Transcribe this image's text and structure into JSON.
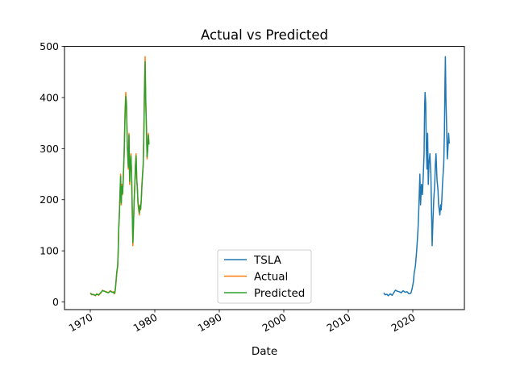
{
  "chart_data": {
    "type": "line",
    "title": "Actual vs Predicted",
    "xlabel": "Date",
    "ylabel": "",
    "x_axis": {
      "kind": "date",
      "ticks": [
        1970,
        1980,
        1990,
        2000,
        2010,
        2020
      ],
      "xlim": [
        1966.0,
        2028.0
      ]
    },
    "y_axis": {
      "ticks": [
        0,
        100,
        200,
        300,
        400,
        500
      ],
      "ylim": [
        -15,
        500
      ]
    },
    "grid": false,
    "legend": {
      "placement": "lower center",
      "entries": [
        "TSLA",
        "Actual",
        "Predicted"
      ]
    },
    "colors": {
      "TSLA": "#1f77b4",
      "Actual": "#ff7f0e",
      "Predicted": "#2ca02c"
    },
    "series": [
      {
        "name": "TSLA",
        "x": [
          2015.5,
          2015.7,
          2016.0,
          2016.2,
          2016.5,
          2016.8,
          2017.0,
          2017.3,
          2017.6,
          2017.9,
          2018.2,
          2018.5,
          2018.8,
          2019.1,
          2019.4,
          2019.7,
          2019.9,
          2020.1,
          2020.2,
          2020.4,
          2020.6,
          2020.8,
          2020.9,
          2021.0,
          2021.1,
          2021.2,
          2021.35,
          2021.5,
          2021.6,
          2021.75,
          2021.83,
          2021.9,
          2022.0,
          2022.1,
          2022.2,
          2022.3,
          2022.4,
          2022.5,
          2022.65,
          2022.8,
          2022.9,
          2023.0,
          2023.1,
          2023.25,
          2023.4,
          2023.5,
          2023.6,
          2023.75,
          2023.9,
          2024.0,
          2024.1,
          2024.2,
          2024.3,
          2024.4,
          2024.5,
          2024.6,
          2024.7,
          2024.8,
          2024.9,
          2024.98,
          2025.05,
          2025.15,
          2025.25,
          2025.35,
          2025.45,
          2025.55,
          2025.65
        ],
        "y": [
          18,
          14,
          15,
          12,
          16,
          13,
          17,
          23,
          21,
          20,
          18,
          22,
          19,
          20,
          16,
          17,
          26,
          40,
          55,
          70,
          100,
          140,
          170,
          210,
          250,
          190,
          230,
          210,
          240,
          290,
          380,
          410,
          390,
          300,
          260,
          330,
          230,
          270,
          290,
          250,
          180,
          110,
          150,
          200,
          230,
          270,
          290,
          240,
          220,
          190,
          180,
          170,
          190,
          180,
          200,
          230,
          250,
          270,
          330,
          420,
          480,
          390,
          340,
          280,
          300,
          330,
          310
        ]
      },
      {
        "name": "Actual",
        "x": [
          1970.0,
          1970.2,
          1970.5,
          1970.8,
          1971.0,
          1971.3,
          1971.6,
          1971.9,
          1972.2,
          1972.5,
          1972.8,
          1973.1,
          1973.4,
          1973.6,
          1973.7,
          1973.8,
          1973.9,
          1974.0,
          1974.1,
          1974.25,
          1974.33,
          1974.4,
          1974.5,
          1974.6,
          1974.7,
          1974.8,
          1974.9,
          1975.0,
          1975.1,
          1975.25,
          1975.4,
          1975.5,
          1975.6,
          1975.75,
          1975.9,
          1976.0,
          1976.1,
          1976.2,
          1976.3,
          1976.4,
          1976.5,
          1976.6,
          1976.7,
          1976.8,
          1976.9,
          1977.0,
          1977.1,
          1977.2,
          1977.3,
          1977.4,
          1977.5,
          1977.6,
          1977.7,
          1977.8,
          1977.9,
          1978.0,
          1978.1,
          1978.2,
          1978.3,
          1978.4,
          1978.5,
          1978.6,
          1978.7,
          1978.8,
          1978.9,
          1979.0,
          1979.1
        ],
        "y": [
          18,
          14,
          15,
          12,
          16,
          13,
          17,
          23,
          21,
          20,
          18,
          22,
          19,
          20,
          16,
          17,
          26,
          40,
          55,
          70,
          100,
          140,
          170,
          210,
          250,
          190,
          230,
          210,
          240,
          290,
          380,
          410,
          390,
          300,
          260,
          330,
          230,
          270,
          290,
          250,
          180,
          110,
          150,
          200,
          230,
          270,
          290,
          240,
          220,
          190,
          180,
          170,
          190,
          180,
          200,
          230,
          250,
          270,
          330,
          420,
          480,
          390,
          340,
          280,
          300,
          330,
          310
        ]
      },
      {
        "name": "Predicted",
        "x": [
          1970.0,
          1970.2,
          1970.5,
          1970.8,
          1971.0,
          1971.3,
          1971.6,
          1971.9,
          1972.2,
          1972.5,
          1972.8,
          1973.1,
          1973.4,
          1973.6,
          1973.7,
          1973.8,
          1973.9,
          1974.0,
          1974.1,
          1974.25,
          1974.33,
          1974.4,
          1974.5,
          1974.6,
          1974.7,
          1974.8,
          1974.9,
          1975.0,
          1975.1,
          1975.25,
          1975.4,
          1975.5,
          1975.6,
          1975.75,
          1975.9,
          1976.0,
          1976.1,
          1976.2,
          1976.3,
          1976.4,
          1976.5,
          1976.6,
          1976.7,
          1976.8,
          1976.9,
          1977.0,
          1977.1,
          1977.2,
          1977.3,
          1977.4,
          1977.5,
          1977.6,
          1977.7,
          1977.8,
          1977.9,
          1978.0,
          1978.1,
          1978.2,
          1978.3,
          1978.4,
          1978.5,
          1978.6,
          1978.7,
          1978.8,
          1978.9,
          1979.0,
          1979.1
        ],
        "y": [
          17,
          15,
          14,
          13,
          15,
          14,
          18,
          22,
          21,
          19,
          18,
          21,
          19,
          19,
          17,
          18,
          28,
          42,
          58,
          72,
          102,
          142,
          168,
          208,
          246,
          194,
          226,
          212,
          236,
          292,
          372,
          402,
          388,
          304,
          264,
          326,
          236,
          268,
          286,
          252,
          184,
          116,
          152,
          198,
          228,
          266,
          286,
          242,
          222,
          194,
          184,
          174,
          188,
          182,
          198,
          226,
          248,
          266,
          324,
          412,
          470,
          392,
          344,
          284,
          298,
          326,
          308
        ]
      }
    ]
  }
}
